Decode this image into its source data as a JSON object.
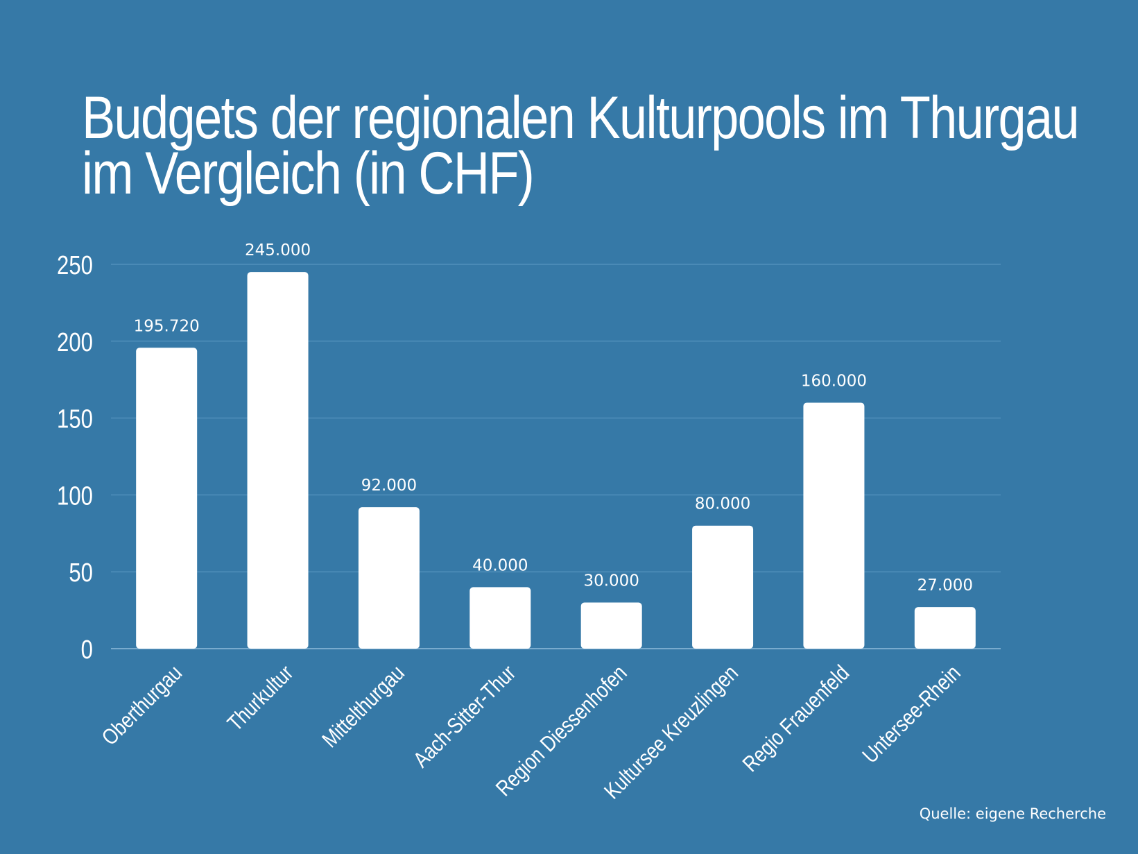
{
  "chart_data": {
    "type": "bar",
    "title_lines": [
      "Budgets der regionalen Kulturpools im Thurgau",
      "im Vergleich (in CHF)"
    ],
    "categories": [
      "Oberthurgau",
      "Thurkultur",
      "Mittelthurgau",
      "Aach-Sitter-Thur",
      "Region Diessenhofen",
      "Kultursee Kreuzlingen",
      "Regio Frauenfeld",
      "Untersee-Rhein"
    ],
    "values": [
      195.72,
      245,
      92,
      40,
      30,
      80,
      160,
      27
    ],
    "value_labels": [
      "195.720",
      "245.000",
      "92.000",
      "40.000",
      "30.000",
      "80.000",
      "160.000",
      "27.000"
    ],
    "y_ticks": [
      0,
      50,
      100,
      150,
      200,
      250
    ],
    "ylim": [
      0,
      250
    ],
    "grid": true,
    "xlabel": "",
    "ylabel": "",
    "colors": {
      "background": "#3679a7",
      "bar": "#ffffff",
      "grid": "#5f9cc6",
      "text": "#ffffff"
    }
  },
  "footer": {
    "source": "Quelle: eigene Recherche"
  }
}
